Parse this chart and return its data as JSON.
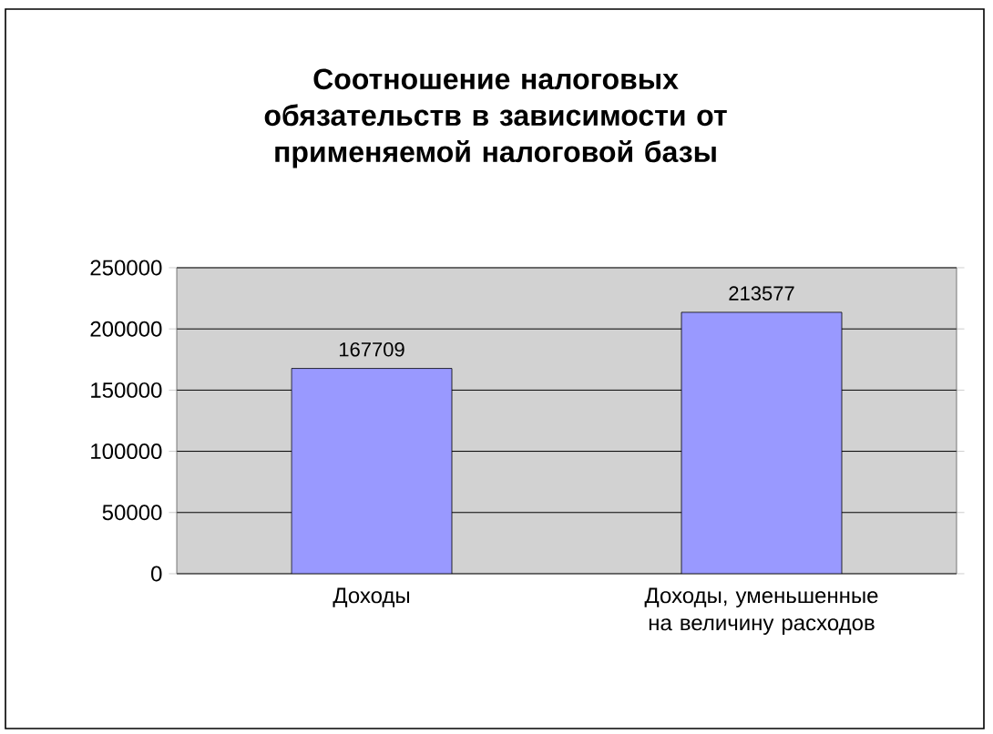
{
  "chart_data": {
    "type": "bar",
    "title": "Соотношение налоговых обязательств в зависимости от применяемой налоговой базы",
    "categories": [
      "Доходы",
      "Доходы, уменьшенные на величину расходов"
    ],
    "values": [
      167709,
      213577
    ],
    "color": "#9999ff",
    "ylim": [
      0,
      250000
    ],
    "yticks": [
      0,
      50000,
      100000,
      150000,
      200000,
      250000
    ],
    "grid": "y",
    "data_labels": true
  }
}
